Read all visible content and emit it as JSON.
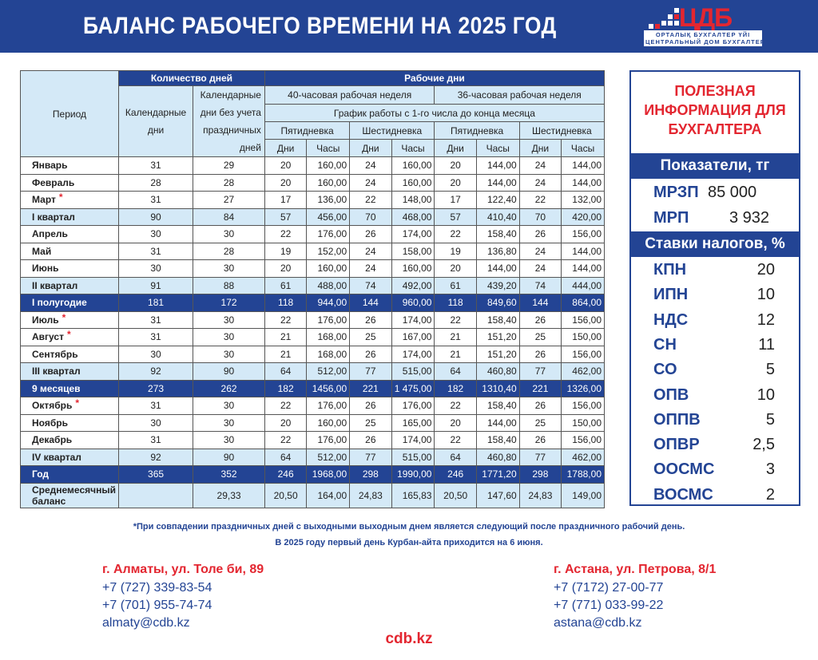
{
  "header": {
    "title": "БАЛАНС РАБОЧЕГО ВРЕМЕНИ НА 2025 ГОД"
  },
  "logo": {
    "mark": "ЦДБ",
    "line1": "ОРТАЛЫҚ БУХГАЛТЕР ҮЙІ",
    "line2": "ЦЕНТРАЛЬНЫЙ ДОМ БУХГАЛТЕРА"
  },
  "colors": {
    "brand_blue": "#234494",
    "accent_red": "#e32630",
    "light_blue": "#d4e9f7"
  },
  "table": {
    "h_period": "Период",
    "h_days_count": "Количество дней",
    "h_work_days": "Рабочие дни",
    "h_cal": "Календарные дни",
    "h_cal_no_hol": "Календарные дни без учета праздничных дней",
    "h_40": "40-часовая рабочая неделя",
    "h_36": "36-часовая рабочая неделя",
    "h_schedule": "График работы с 1-го числа до конца месяца",
    "h_5day": "Пятидневка",
    "h_6day": "Шестидневка",
    "h_days": "Дни",
    "h_hours": "Часы",
    "rows": [
      {
        "type": "m",
        "period": "Январь",
        "star": false,
        "v": [
          "31",
          "29",
          "20",
          "160,00",
          "24",
          "160,00",
          "20",
          "144,00",
          "24",
          "144,00"
        ]
      },
      {
        "type": "m",
        "period": "Февраль",
        "star": false,
        "v": [
          "28",
          "28",
          "20",
          "160,00",
          "24",
          "160,00",
          "20",
          "144,00",
          "24",
          "144,00"
        ]
      },
      {
        "type": "m",
        "period": "Март",
        "star": true,
        "v": [
          "31",
          "27",
          "17",
          "136,00",
          "22",
          "148,00",
          "17",
          "122,40",
          "22",
          "132,00"
        ]
      },
      {
        "type": "q",
        "period": "I квартал",
        "star": false,
        "v": [
          "90",
          "84",
          "57",
          "456,00",
          "70",
          "468,00",
          "57",
          "410,40",
          "70",
          "420,00"
        ]
      },
      {
        "type": "m",
        "period": "Апрель",
        "star": false,
        "v": [
          "30",
          "30",
          "22",
          "176,00",
          "26",
          "174,00",
          "22",
          "158,40",
          "26",
          "156,00"
        ]
      },
      {
        "type": "m",
        "period": "Май",
        "star": false,
        "v": [
          "31",
          "28",
          "19",
          "152,00",
          "24",
          "158,00",
          "19",
          "136,80",
          "24",
          "144,00"
        ]
      },
      {
        "type": "m",
        "period": "Июнь",
        "star": false,
        "v": [
          "30",
          "30",
          "20",
          "160,00",
          "24",
          "160,00",
          "20",
          "144,00",
          "24",
          "144,00"
        ]
      },
      {
        "type": "q",
        "period": "II квартал",
        "star": false,
        "v": [
          "91",
          "88",
          "61",
          "488,00",
          "74",
          "492,00",
          "61",
          "439,20",
          "74",
          "444,00"
        ]
      },
      {
        "type": "t",
        "period": "I полугодие",
        "star": false,
        "v": [
          "181",
          "172",
          "118",
          "944,00",
          "144",
          "960,00",
          "118",
          "849,60",
          "144",
          "864,00"
        ]
      },
      {
        "type": "m",
        "period": "Июль",
        "star": true,
        "v": [
          "31",
          "30",
          "22",
          "176,00",
          "26",
          "174,00",
          "22",
          "158,40",
          "26",
          "156,00"
        ]
      },
      {
        "type": "m",
        "period": "Август",
        "star": true,
        "v": [
          "31",
          "30",
          "21",
          "168,00",
          "25",
          "167,00",
          "21",
          "151,20",
          "25",
          "150,00"
        ]
      },
      {
        "type": "m",
        "period": "Сентябрь",
        "star": false,
        "v": [
          "30",
          "30",
          "21",
          "168,00",
          "26",
          "174,00",
          "21",
          "151,20",
          "26",
          "156,00"
        ]
      },
      {
        "type": "q",
        "period": "III квартал",
        "star": false,
        "v": [
          "92",
          "90",
          "64",
          "512,00",
          "77",
          "515,00",
          "64",
          "460,80",
          "77",
          "462,00"
        ]
      },
      {
        "type": "t",
        "period": "9 месяцев",
        "star": false,
        "v": [
          "273",
          "262",
          "182",
          "1456,00",
          "221",
          "1 475,00",
          "182",
          "1310,40",
          "221",
          "1326,00"
        ]
      },
      {
        "type": "m",
        "period": "Октябрь",
        "star": true,
        "v": [
          "31",
          "30",
          "22",
          "176,00",
          "26",
          "176,00",
          "22",
          "158,40",
          "26",
          "156,00"
        ]
      },
      {
        "type": "m",
        "period": "Ноябрь",
        "star": false,
        "v": [
          "30",
          "30",
          "20",
          "160,00",
          "25",
          "165,00",
          "20",
          "144,00",
          "25",
          "150,00"
        ]
      },
      {
        "type": "m",
        "period": "Декабрь",
        "star": false,
        "v": [
          "31",
          "30",
          "22",
          "176,00",
          "26",
          "174,00",
          "22",
          "158,40",
          "26",
          "156,00"
        ]
      },
      {
        "type": "q",
        "period": "IV квартал",
        "star": false,
        "v": [
          "92",
          "90",
          "64",
          "512,00",
          "77",
          "515,00",
          "64",
          "460,80",
          "77",
          "462,00"
        ]
      },
      {
        "type": "t",
        "period": "Год",
        "star": false,
        "v": [
          "365",
          "352",
          "246",
          "1968,00",
          "298",
          "1990,00",
          "246",
          "1771,20",
          "298",
          "1788,00"
        ]
      },
      {
        "type": "avg",
        "period": "Среднемесячный баланс",
        "star": false,
        "v": [
          "",
          "29,33",
          "20,50",
          "164,00",
          "24,83",
          "165,83",
          "20,50",
          "147,60",
          "24,83",
          "149,00"
        ]
      }
    ],
    "star_mark": "*"
  },
  "panel": {
    "title": "ПОЛЕЗНАЯ ИНФОРМАЦИЯ ДЛЯ БУХГАЛТЕРА",
    "indicators_title": "Показатели, тг",
    "indicators": [
      {
        "k": "МРЗП",
        "v": "85 000"
      },
      {
        "k": "МРП",
        "v": "3 932"
      }
    ],
    "taxes_title": "Ставки налогов, %",
    "taxes": [
      {
        "k": "КПН",
        "v": "20"
      },
      {
        "k": "ИПН",
        "v": "10"
      },
      {
        "k": "НДС",
        "v": "12"
      },
      {
        "k": "СН",
        "v": "11"
      },
      {
        "k": "СО",
        "v": "5"
      },
      {
        "k": "ОПВ",
        "v": "10"
      },
      {
        "k": "ОППВ",
        "v": "5"
      },
      {
        "k": "ОПВР",
        "v": "2,5"
      },
      {
        "k": "ООСМС",
        "v": "3"
      },
      {
        "k": "ВОСМС",
        "v": "2"
      }
    ]
  },
  "notes": [
    "*При совпадении праздничных дней с выходными выходным днем является следующий после праздничного рабочий день.",
    "В 2025 году первый день Курбан-айта приходится на 6 июня."
  ],
  "contacts": {
    "almaty": {
      "address": "г. Алматы, ул. Толе би, 89",
      "phone1": "+7 (727) 339-83-54",
      "phone2": "+7 (701) 955-74-74",
      "email": "almaty@cdb.kz"
    },
    "astana": {
      "address": "г. Астана, ул. Петрова, 8/1",
      "phone1": "+7 (7172) 27-00-77",
      "phone2": "+7 (771) 033-99-22",
      "email": "astana@cdb.kz"
    },
    "site": "cdb.kz"
  }
}
